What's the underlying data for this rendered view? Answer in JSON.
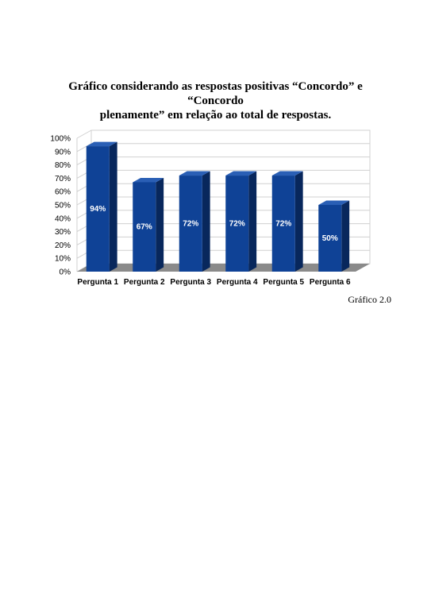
{
  "page": {
    "title_line1": "Gráfico considerando as respostas positivas “Concordo” e “Concordo",
    "title_line2": "plenamente” em relação ao total de respostas.",
    "caption": "Gráfico 2.0"
  },
  "chart_data": {
    "type": "bar",
    "style": "3d-column",
    "categories": [
      "Pergunta 1",
      "Pergunta 2",
      "Pergunta 3",
      "Pergunta 4",
      "Pergunta 5",
      "Pergunta 6"
    ],
    "values": [
      94,
      67,
      72,
      72,
      72,
      50
    ],
    "data_labels": [
      "94%",
      "67%",
      "72%",
      "72%",
      "72%",
      "50%"
    ],
    "yticks": [
      "0%",
      "10%",
      "20%",
      "30%",
      "40%",
      "50%",
      "60%",
      "70%",
      "80%",
      "90%",
      "100%"
    ],
    "ylim": [
      0,
      100
    ],
    "grid": true,
    "legend": "none",
    "colors": {
      "bar_front": "#0f4296",
      "bar_side": "#08275c",
      "bar_top": "#2a5fb5",
      "floor": "#8a8a8a",
      "grid": "#d0d0d0"
    }
  }
}
